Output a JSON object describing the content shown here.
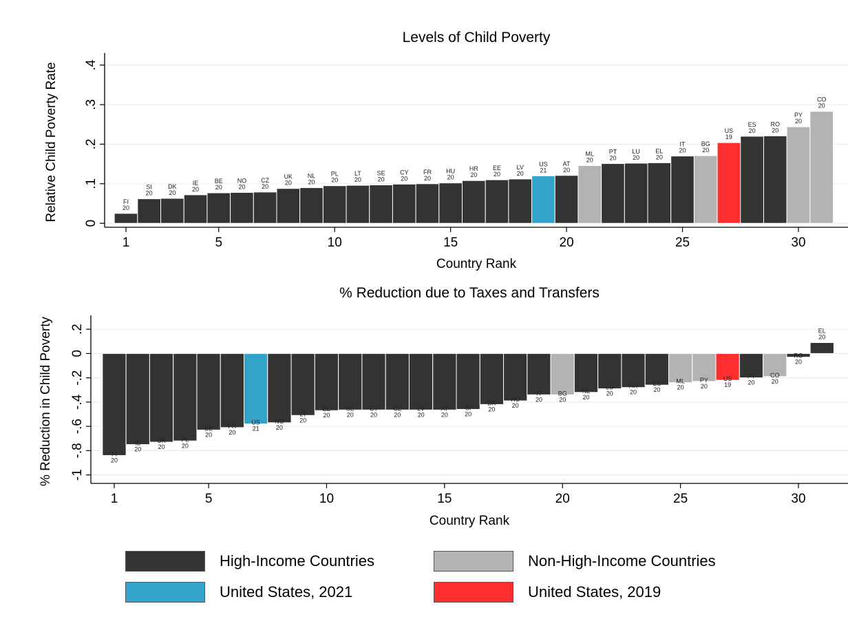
{
  "colors": {
    "high": "#333333",
    "non_high": "#b3b3b3",
    "us2021": "#33a3c9",
    "us2019": "#ff2e2e",
    "bar_edge": "#ffffff"
  },
  "legend": [
    {
      "key": "high",
      "label": "High-Income Countries"
    },
    {
      "key": "non_high",
      "label": "Non-High-Income Countries"
    },
    {
      "key": "us2021",
      "label": "United States, 2021"
    },
    {
      "key": "us2019",
      "label": "United States, 2019"
    }
  ],
  "chart_data": [
    {
      "type": "bar",
      "title": "Levels of Child Poverty",
      "xlabel": "Country Rank",
      "ylabel": "Relative Child Poverty Rate",
      "xticks": [
        1,
        5,
        10,
        15,
        20,
        25,
        30
      ],
      "yticks": [
        {
          "v": 0,
          "t": "0"
        },
        {
          "v": 0.1,
          "t": ".1"
        },
        {
          "v": 0.2,
          "t": ".2"
        },
        {
          "v": 0.3,
          "t": ".3"
        },
        {
          "v": 0.4,
          "t": ".4"
        }
      ],
      "ylim": [
        -0.01,
        0.42
      ],
      "grid": true,
      "bars": [
        {
          "rank": 1,
          "code": "FI",
          "year": "20",
          "value": 0.025,
          "group": "high"
        },
        {
          "rank": 2,
          "code": "SI",
          "year": "20",
          "value": 0.062,
          "group": "high"
        },
        {
          "rank": 3,
          "code": "DK",
          "year": "20",
          "value": 0.063,
          "group": "high"
        },
        {
          "rank": 4,
          "code": "IE",
          "year": "20",
          "value": 0.072,
          "group": "high"
        },
        {
          "rank": 5,
          "code": "BE",
          "year": "20",
          "value": 0.077,
          "group": "high"
        },
        {
          "rank": 6,
          "code": "NO",
          "year": "20",
          "value": 0.078,
          "group": "high"
        },
        {
          "rank": 7,
          "code": "CZ",
          "year": "20",
          "value": 0.079,
          "group": "high"
        },
        {
          "rank": 8,
          "code": "UK",
          "year": "20",
          "value": 0.088,
          "group": "high"
        },
        {
          "rank": 9,
          "code": "NL",
          "year": "20",
          "value": 0.09,
          "group": "high"
        },
        {
          "rank": 10,
          "code": "PL",
          "year": "20",
          "value": 0.095,
          "group": "high"
        },
        {
          "rank": 11,
          "code": "LT",
          "year": "20",
          "value": 0.096,
          "group": "high"
        },
        {
          "rank": 12,
          "code": "SE",
          "year": "20",
          "value": 0.097,
          "group": "high"
        },
        {
          "rank": 13,
          "code": "CY",
          "year": "20",
          "value": 0.099,
          "group": "high"
        },
        {
          "rank": 14,
          "code": "FR",
          "year": "20",
          "value": 0.1,
          "group": "high"
        },
        {
          "rank": 15,
          "code": "HU",
          "year": "20",
          "value": 0.102,
          "group": "high"
        },
        {
          "rank": 16,
          "code": "HR",
          "year": "20",
          "value": 0.108,
          "group": "high"
        },
        {
          "rank": 17,
          "code": "EE",
          "year": "20",
          "value": 0.11,
          "group": "high"
        },
        {
          "rank": 18,
          "code": "LV",
          "year": "20",
          "value": 0.112,
          "group": "high"
        },
        {
          "rank": 19,
          "code": "US",
          "year": "21",
          "value": 0.12,
          "group": "us2021"
        },
        {
          "rank": 20,
          "code": "AT",
          "year": "20",
          "value": 0.121,
          "group": "high"
        },
        {
          "rank": 21,
          "code": "ML",
          "year": "20",
          "value": 0.146,
          "group": "non_high"
        },
        {
          "rank": 22,
          "code": "PT",
          "year": "20",
          "value": 0.151,
          "group": "high"
        },
        {
          "rank": 23,
          "code": "LU",
          "year": "20",
          "value": 0.152,
          "group": "high"
        },
        {
          "rank": 24,
          "code": "EL",
          "year": "20",
          "value": 0.153,
          "group": "high"
        },
        {
          "rank": 25,
          "code": "IT",
          "year": "20",
          "value": 0.17,
          "group": "high"
        },
        {
          "rank": 26,
          "code": "BG",
          "year": "20",
          "value": 0.171,
          "group": "non_high"
        },
        {
          "rank": 27,
          "code": "US",
          "year": "19",
          "value": 0.204,
          "group": "us2019"
        },
        {
          "rank": 28,
          "code": "ES",
          "year": "20",
          "value": 0.22,
          "group": "high"
        },
        {
          "rank": 29,
          "code": "RO",
          "year": "20",
          "value": 0.221,
          "group": "high"
        },
        {
          "rank": 30,
          "code": "PY",
          "year": "20",
          "value": 0.244,
          "group": "non_high"
        },
        {
          "rank": 31,
          "code": "CO",
          "year": "20",
          "value": 0.283,
          "group": "non_high"
        }
      ]
    },
    {
      "type": "bar",
      "title": "% Reduction due to Taxes and Transfers",
      "xlabel": "Country Rank",
      "ylabel": "% Reduction in Child Poverty",
      "xticks": [
        1,
        5,
        10,
        15,
        20,
        25,
        30
      ],
      "yticks": [
        {
          "v": -1,
          "t": "-1"
        },
        {
          "v": -0.8,
          "t": "-.8"
        },
        {
          "v": -0.6,
          "t": "-.6"
        },
        {
          "v": -0.4,
          "t": "-.4"
        },
        {
          "v": -0.2,
          "t": "-.2"
        },
        {
          "v": 0,
          "t": "0"
        },
        {
          "v": 0.2,
          "t": ".2"
        }
      ],
      "ylim": [
        -1.07,
        0.28
      ],
      "grid": true,
      "bars": [
        {
          "rank": 1,
          "code": "FI",
          "year": "20",
          "value": -0.84,
          "group": "high"
        },
        {
          "rank": 2,
          "code": "IE",
          "year": "20",
          "value": -0.75,
          "group": "high"
        },
        {
          "rank": 3,
          "code": "UK",
          "year": "20",
          "value": -0.73,
          "group": "high"
        },
        {
          "rank": 4,
          "code": "PL",
          "year": "20",
          "value": -0.72,
          "group": "high"
        },
        {
          "rank": 5,
          "code": "BE",
          "year": "20",
          "value": -0.63,
          "group": "high"
        },
        {
          "rank": 6,
          "code": "FR",
          "year": "20",
          "value": -0.61,
          "group": "high"
        },
        {
          "rank": 7,
          "code": "US",
          "year": "21",
          "value": -0.58,
          "group": "us2021"
        },
        {
          "rank": 8,
          "code": "NO",
          "year": "20",
          "value": -0.57,
          "group": "high"
        },
        {
          "rank": 9,
          "code": "LT",
          "year": "20",
          "value": -0.51,
          "group": "high"
        },
        {
          "rank": 10,
          "code": "EE",
          "year": "20",
          "value": -0.47,
          "group": "high"
        },
        {
          "rank": 11,
          "code": "SE",
          "year": "20",
          "value": -0.465,
          "group": "high"
        },
        {
          "rank": 12,
          "code": "CY",
          "year": "20",
          "value": -0.465,
          "group": "high"
        },
        {
          "rank": 13,
          "code": "CZ",
          "year": "20",
          "value": -0.465,
          "group": "high"
        },
        {
          "rank": 14,
          "code": "LV",
          "year": "20",
          "value": -0.465,
          "group": "high"
        },
        {
          "rank": 15,
          "code": "AT",
          "year": "20",
          "value": -0.465,
          "group": "high"
        },
        {
          "rank": 16,
          "code": "SI",
          "year": "20",
          "value": -0.46,
          "group": "high"
        },
        {
          "rank": 17,
          "code": "DK",
          "year": "20",
          "value": -0.42,
          "group": "high"
        },
        {
          "rank": 18,
          "code": "HU",
          "year": "20",
          "value": -0.39,
          "group": "high"
        },
        {
          "rank": 19,
          "code": "IT",
          "year": "20",
          "value": -0.34,
          "group": "high"
        },
        {
          "rank": 20,
          "code": "BG",
          "year": "20",
          "value": -0.34,
          "group": "non_high"
        },
        {
          "rank": 21,
          "code": "NL",
          "year": "20",
          "value": -0.32,
          "group": "high"
        },
        {
          "rank": 22,
          "code": "LU",
          "year": "20",
          "value": -0.29,
          "group": "high"
        },
        {
          "rank": 23,
          "code": "HR",
          "year": "20",
          "value": -0.28,
          "group": "high"
        },
        {
          "rank": 24,
          "code": "ES",
          "year": "20",
          "value": -0.26,
          "group": "high"
        },
        {
          "rank": 25,
          "code": "ML",
          "year": "20",
          "value": -0.24,
          "group": "non_high"
        },
        {
          "rank": 26,
          "code": "PY",
          "year": "20",
          "value": -0.23,
          "group": "non_high"
        },
        {
          "rank": 27,
          "code": "US",
          "year": "19",
          "value": -0.22,
          "group": "us2019"
        },
        {
          "rank": 28,
          "code": "PT",
          "year": "20",
          "value": -0.2,
          "group": "high"
        },
        {
          "rank": 29,
          "code": "CO",
          "year": "20",
          "value": -0.19,
          "group": "non_high"
        },
        {
          "rank": 30,
          "code": "RO",
          "year": "20",
          "value": -0.03,
          "group": "high"
        },
        {
          "rank": 31,
          "code": "EL",
          "year": "20",
          "value": 0.09,
          "group": "high"
        }
      ]
    }
  ]
}
